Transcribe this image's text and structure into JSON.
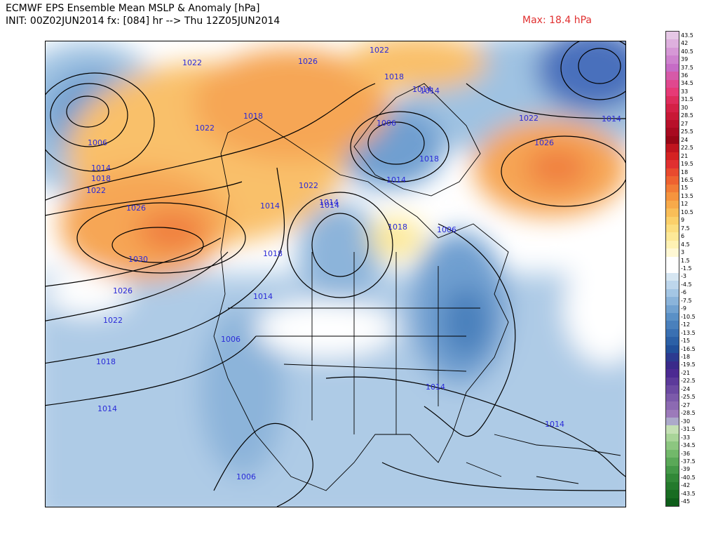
{
  "header": {
    "line1": "ECMWF EPS Ensemble Mean MSLP & Anomaly [hPa]",
    "line2": "INIT: 00Z02JUN2014 fx: [084] hr --> Thu 12Z05JUN2014",
    "max": "Max: 18.4 hPa"
  },
  "map": {
    "pressure_labels": [
      "1022",
      "1026",
      "1022",
      "1018",
      "1018",
      "1014",
      "1006",
      "1014",
      "1018",
      "1022",
      "1026",
      "1030",
      "1026",
      "1022",
      "1018",
      "1014",
      "1022",
      "1018",
      "1014",
      "1006",
      "1014",
      "1018",
      "1022",
      "1026",
      "1014",
      "1014",
      "1022",
      "1018",
      "1014",
      "1006",
      "1006",
      "1014",
      "1014",
      "1006",
      "1014",
      "1014"
    ]
  },
  "colorbar": {
    "labels": [
      "43.5",
      "42",
      "40.5",
      "39",
      "37.5",
      "36",
      "34.5",
      "33",
      "31.5",
      "30",
      "28.5",
      "27",
      "25.5",
      "24",
      "22.5",
      "21",
      "19.5",
      "18",
      "16.5",
      "15",
      "13.5",
      "12",
      "10.5",
      "9",
      "7.5",
      "6",
      "4.5",
      "3",
      "1.5",
      "-1.5",
      "-3",
      "-4.5",
      "-6",
      "-7.5",
      "-9",
      "-10.5",
      "-12",
      "-13.5",
      "-15",
      "-16.5",
      "-18",
      "-19.5",
      "-21",
      "-22.5",
      "-24",
      "-25.5",
      "-27",
      "-28.5",
      "-30",
      "-31.5",
      "-33",
      "-34.5",
      "-36",
      "-37.5",
      "-39",
      "-40.5",
      "-42",
      "-43.5",
      "-45"
    ],
    "colors": [
      "#e6c8e6",
      "#deb0de",
      "#d698d6",
      "#ce82ce",
      "#c66cc6",
      "#d65aa8",
      "#e0488e",
      "#e63a76",
      "#de2c5c",
      "#d42046",
      "#c81836",
      "#b8102a",
      "#a80a20",
      "#980616",
      "#c0141e",
      "#d42222",
      "#e03030",
      "#e84a2e",
      "#ee6230",
      "#f27c36",
      "#f5943e",
      "#f7aa4a",
      "#f9be58",
      "#fbd06a",
      "#fcde80",
      "#fde998",
      "#fef2b4",
      "#fff8d4",
      "#ffffff",
      "#ffffff",
      "#d6e6f2",
      "#bdd6ec",
      "#a4c6e4",
      "#8bb4da",
      "#72a2d0",
      "#5a90c6",
      "#4a80bc",
      "#3a70b2",
      "#2c60a6",
      "#22509a",
      "#2c3a90",
      "#3a2a8a",
      "#4c2a92",
      "#5c3a9a",
      "#6c4aa2",
      "#7c5aaa",
      "#8c6ab2",
      "#9c7aba",
      "#acaaca",
      "#c4e0b4",
      "#a8d498",
      "#8cc680",
      "#72b86a",
      "#5aa858",
      "#449848",
      "#328838",
      "#247a2c",
      "#186c22",
      "#0e5e1a"
    ]
  }
}
